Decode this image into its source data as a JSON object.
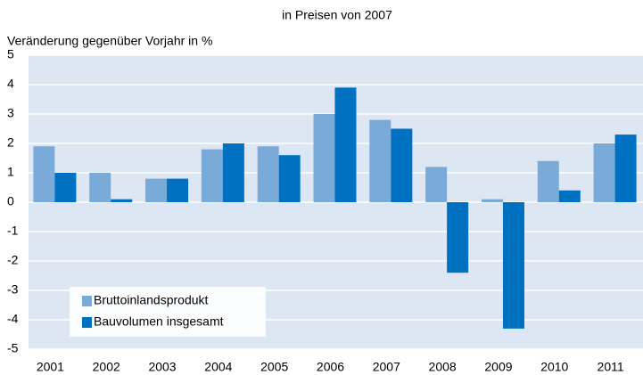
{
  "chart_data": {
    "type": "bar",
    "title": "in Preisen von 2007",
    "y_label": "Veränderung gegenüber Vorjahr in %",
    "categories": [
      "2001",
      "2002",
      "2003",
      "2004",
      "2005",
      "2006",
      "2007",
      "2008",
      "2009",
      "2010",
      "2011"
    ],
    "series": [
      {
        "name": "Bruttoinlandsprodukt",
        "color": "#7aaad8",
        "values": [
          1.9,
          1.0,
          0.8,
          1.8,
          1.9,
          3.0,
          2.8,
          1.2,
          0.1,
          1.4,
          2.0
        ]
      },
      {
        "name": "Bauvolumen insgesamt",
        "color": "#0070c0",
        "values": [
          1.0,
          0.1,
          0.8,
          2.0,
          1.6,
          3.9,
          2.5,
          -2.4,
          -4.3,
          0.4,
          2.3
        ]
      }
    ],
    "ylim": [
      -5,
      5
    ],
    "yticks": [
      -5,
      -4,
      -3,
      -2,
      -1,
      0,
      1,
      2,
      3,
      4,
      5
    ],
    "grid": true,
    "legend": "lower left"
  }
}
